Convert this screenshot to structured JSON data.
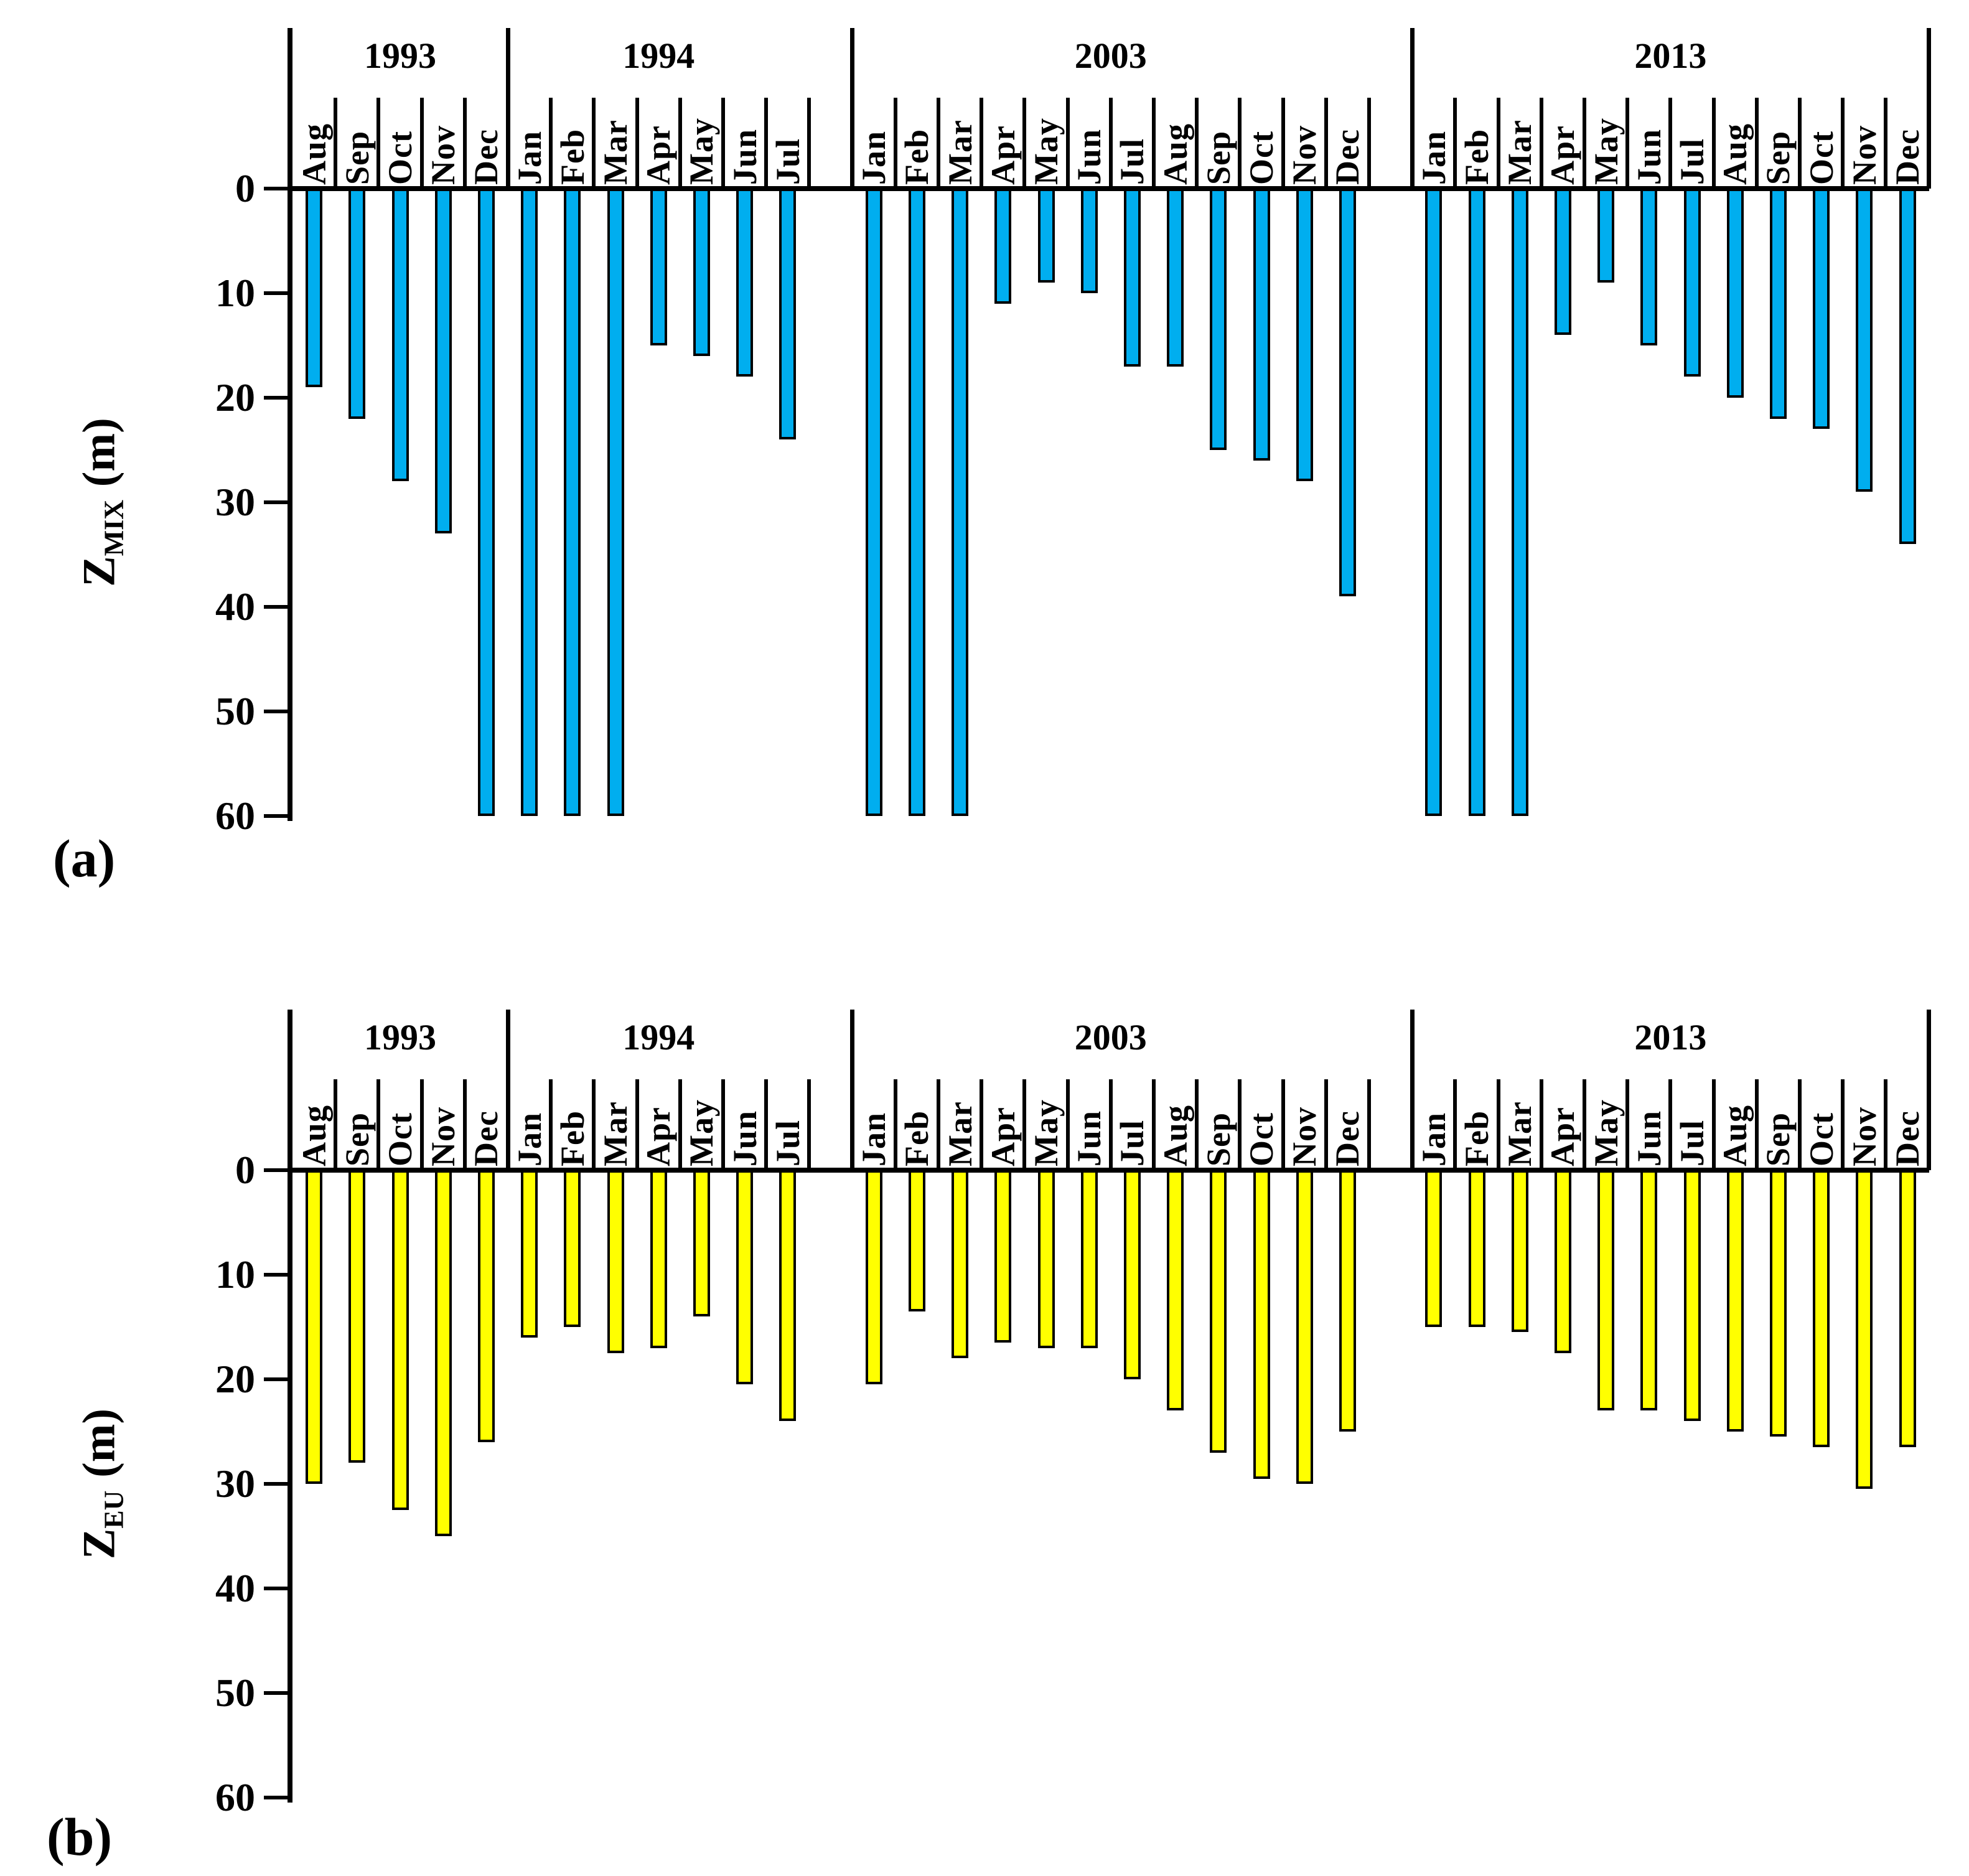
{
  "figure": {
    "background": "#ffffff",
    "panel_count": 2
  },
  "chart_data": [
    {
      "type": "bar",
      "panel_label": "(a)",
      "ylabel": "Z_MIX (m)",
      "ylabel_main": "Z",
      "ylabel_sub": "MIX",
      "ylabel_unit": "(m)",
      "bar_color": "#00AEEF",
      "bar_outline": "#000000",
      "ylim": [
        0,
        60
      ],
      "yticks": [
        0,
        10,
        20,
        30,
        40,
        50,
        60
      ],
      "y_axis_inverted_bars_hang_down": true,
      "grid": false,
      "legend": "none",
      "groups": [
        {
          "year": "1993",
          "months": [
            "Aug",
            "Sep",
            "Oct",
            "Nov",
            "Dec"
          ],
          "values": [
            19,
            22,
            28,
            33,
            60
          ],
          "gap_after_slots": 0
        },
        {
          "year": "1994",
          "months": [
            "Jan",
            "Feb",
            "Mar",
            "Apr",
            "May",
            "Jun",
            "Jul"
          ],
          "values": [
            60,
            60,
            60,
            15,
            16,
            18,
            24
          ],
          "gap_after_slots": 1
        },
        {
          "year": "2003",
          "months": [
            "Jan",
            "Feb",
            "Mar",
            "Apr",
            "May",
            "Jun",
            "Jul",
            "Aug",
            "Sep",
            "Oct",
            "Nov",
            "Dec"
          ],
          "values": [
            60,
            60,
            60,
            11,
            9,
            10,
            17,
            17,
            25,
            26,
            28,
            39
          ],
          "gap_after_slots": 1
        },
        {
          "year": "2013",
          "months": [
            "Jan",
            "Feb",
            "Mar",
            "Apr",
            "May",
            "Jun",
            "Jul",
            "Aug",
            "Sep",
            "Oct",
            "Nov",
            "Dec"
          ],
          "values": [
            60,
            60,
            60,
            14,
            9,
            15,
            18,
            20,
            22,
            23,
            29,
            34
          ],
          "gap_after_slots": 0
        }
      ]
    },
    {
      "type": "bar",
      "panel_label": "(b)",
      "ylabel": "Z_EU (m)",
      "ylabel_main": "Z",
      "ylabel_sub": "EU",
      "ylabel_unit": "(m)",
      "bar_color": "#FFFF00",
      "bar_outline": "#000000",
      "ylim": [
        0,
        60
      ],
      "yticks": [
        0,
        10,
        20,
        30,
        40,
        50,
        60
      ],
      "y_axis_inverted_bars_hang_down": true,
      "grid": false,
      "legend": "none",
      "groups": [
        {
          "year": "1993",
          "months": [
            "Aug",
            "Sep",
            "Oct",
            "Nov",
            "Dec"
          ],
          "values": [
            30,
            28,
            32.5,
            35,
            26
          ],
          "gap_after_slots": 0
        },
        {
          "year": "1994",
          "months": [
            "Jan",
            "Feb",
            "Mar",
            "Apr",
            "May",
            "Jun",
            "Jul"
          ],
          "values": [
            16,
            15,
            17.5,
            17,
            14,
            20.5,
            24
          ],
          "gap_after_slots": 1
        },
        {
          "year": "2003",
          "months": [
            "Jan",
            "Feb",
            "Mar",
            "Apr",
            "May",
            "Jun",
            "Jul",
            "Aug",
            "Sep",
            "Oct",
            "Nov",
            "Dec"
          ],
          "values": [
            20.5,
            13.5,
            18,
            16.5,
            17,
            17,
            20,
            23,
            27,
            29.5,
            30,
            25
          ],
          "gap_after_slots": 1
        },
        {
          "year": "2013",
          "months": [
            "Jan",
            "Feb",
            "Mar",
            "Apr",
            "May",
            "Jun",
            "Jul",
            "Aug",
            "Sep",
            "Oct",
            "Nov",
            "Dec"
          ],
          "values": [
            15,
            15,
            15.5,
            17.5,
            23,
            23,
            24,
            25,
            25.5,
            26.5,
            30.5,
            26.5
          ],
          "gap_after_slots": 0
        }
      ]
    }
  ]
}
